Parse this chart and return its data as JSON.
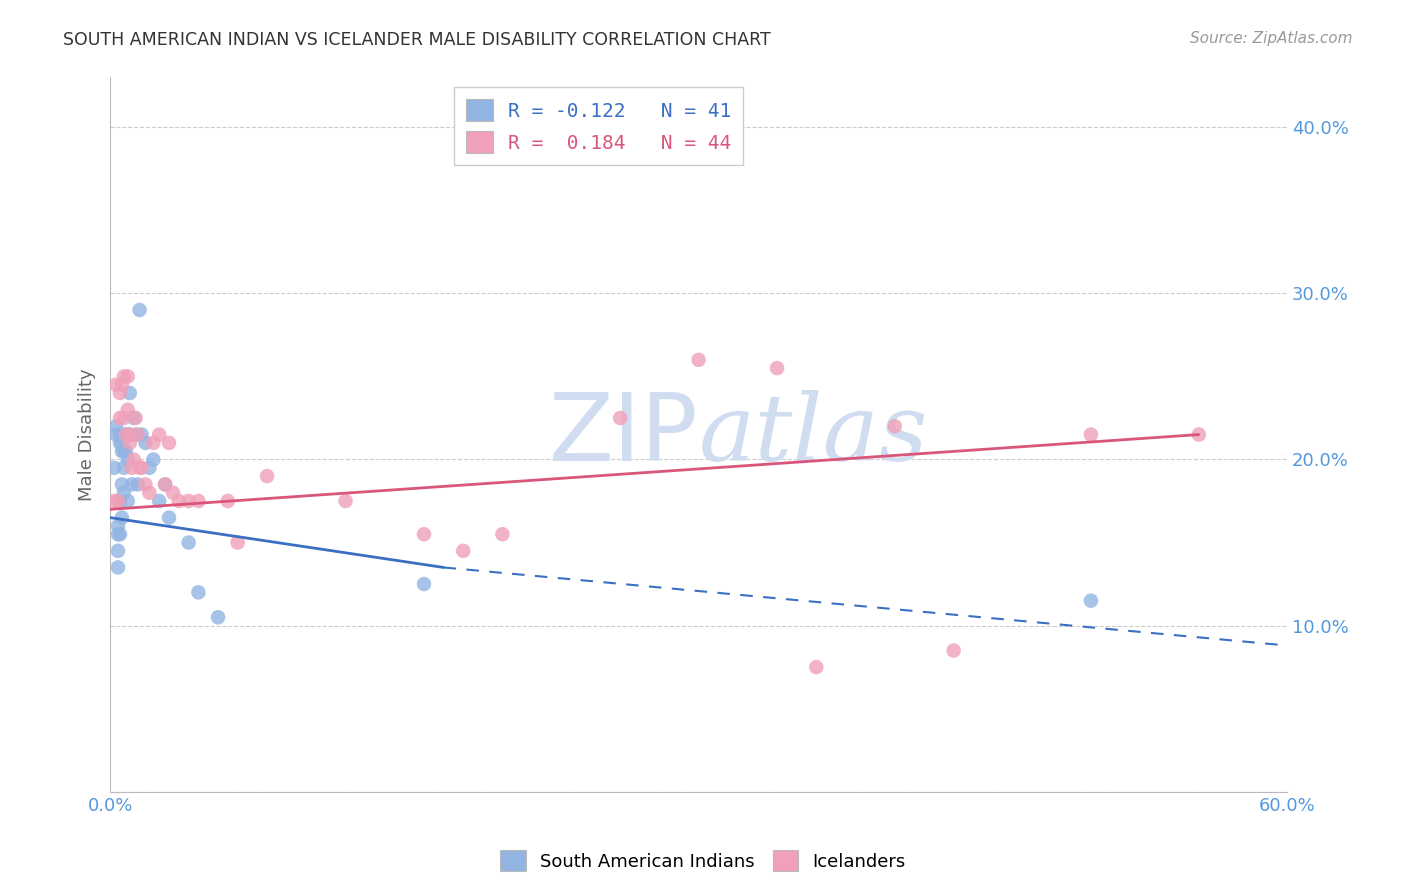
{
  "title": "SOUTH AMERICAN INDIAN VS ICELANDER MALE DISABILITY CORRELATION CHART",
  "source": "Source: ZipAtlas.com",
  "ylabel": "Male Disability",
  "xlim": [
    0.0,
    0.6
  ],
  "ylim": [
    0.0,
    0.43
  ],
  "legend_labels": [
    "South American Indians",
    "Icelanders"
  ],
  "R_blue": -0.122,
  "N_blue": 41,
  "R_pink": 0.184,
  "N_pink": 44,
  "blue_color": "#92b4e3",
  "pink_color": "#f0a0b8",
  "blue_line_color": "#3a6fc4",
  "pink_line_color": "#d9567a",
  "watermark_color": "#d0ddf0",
  "blue_points_x": [
    0.002,
    0.003,
    0.003,
    0.004,
    0.004,
    0.004,
    0.004,
    0.005,
    0.005,
    0.005,
    0.005,
    0.006,
    0.006,
    0.006,
    0.006,
    0.007,
    0.007,
    0.007,
    0.008,
    0.008,
    0.009,
    0.009,
    0.01,
    0.01,
    0.011,
    0.012,
    0.013,
    0.014,
    0.015,
    0.016,
    0.018,
    0.02,
    0.022,
    0.025,
    0.028,
    0.03,
    0.04,
    0.045,
    0.055,
    0.16,
    0.5
  ],
  "blue_points_y": [
    0.195,
    0.215,
    0.22,
    0.16,
    0.155,
    0.145,
    0.135,
    0.215,
    0.21,
    0.175,
    0.155,
    0.21,
    0.205,
    0.185,
    0.165,
    0.205,
    0.195,
    0.18,
    0.215,
    0.205,
    0.2,
    0.175,
    0.24,
    0.215,
    0.185,
    0.225,
    0.215,
    0.185,
    0.29,
    0.215,
    0.21,
    0.195,
    0.2,
    0.175,
    0.185,
    0.165,
    0.15,
    0.12,
    0.105,
    0.125,
    0.115
  ],
  "pink_points_x": [
    0.002,
    0.003,
    0.004,
    0.005,
    0.005,
    0.006,
    0.007,
    0.007,
    0.008,
    0.009,
    0.009,
    0.01,
    0.01,
    0.011,
    0.012,
    0.013,
    0.014,
    0.015,
    0.016,
    0.018,
    0.02,
    0.022,
    0.025,
    0.028,
    0.03,
    0.032,
    0.035,
    0.04,
    0.045,
    0.06,
    0.065,
    0.08,
    0.12,
    0.16,
    0.18,
    0.2,
    0.26,
    0.3,
    0.34,
    0.36,
    0.4,
    0.43,
    0.5,
    0.555
  ],
  "pink_points_y": [
    0.175,
    0.245,
    0.175,
    0.24,
    0.225,
    0.245,
    0.25,
    0.225,
    0.215,
    0.25,
    0.23,
    0.215,
    0.21,
    0.195,
    0.2,
    0.225,
    0.215,
    0.195,
    0.195,
    0.185,
    0.18,
    0.21,
    0.215,
    0.185,
    0.21,
    0.18,
    0.175,
    0.175,
    0.175,
    0.175,
    0.15,
    0.19,
    0.175,
    0.155,
    0.145,
    0.155,
    0.225,
    0.26,
    0.255,
    0.075,
    0.22,
    0.085,
    0.215,
    0.215
  ],
  "blue_line_x0": 0.0,
  "blue_line_x_solid_end": 0.17,
  "blue_line_x_end": 0.6,
  "blue_line_y0": 0.165,
  "blue_line_y_solid_end": 0.135,
  "blue_line_y_end": 0.088,
  "pink_line_x0": 0.0,
  "pink_line_x_end": 0.555,
  "pink_line_y0": 0.17,
  "pink_line_y_end": 0.215
}
